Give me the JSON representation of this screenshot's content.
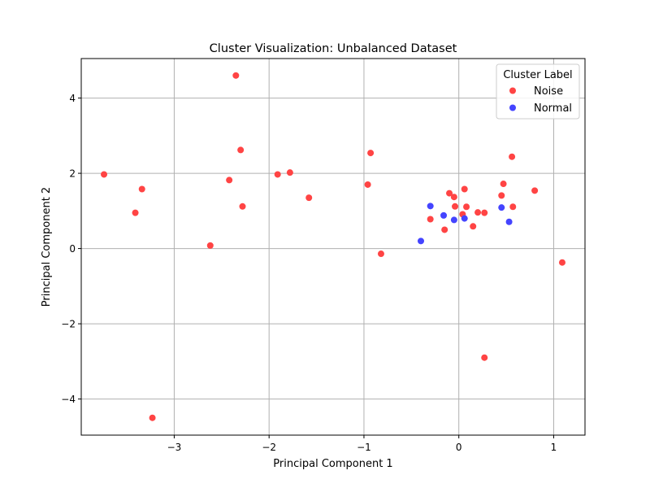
{
  "chart_data": {
    "type": "scatter",
    "title": "Cluster Visualization: Unbalanced Dataset",
    "xlabel": "Principal Component 1",
    "ylabel": "Principal Component 2",
    "xlim": [
      -3.98,
      1.33
    ],
    "ylim": [
      -4.96,
      5.05
    ],
    "xticks": [
      -3,
      -2,
      -1,
      0,
      1
    ],
    "yticks": [
      -4,
      -2,
      0,
      2,
      4
    ],
    "xtick_labels": [
      "−3",
      "−2",
      "−1",
      "0",
      "1"
    ],
    "ytick_labels": [
      "−4",
      "−2",
      "0",
      "2",
      "4"
    ],
    "grid": true,
    "legend": {
      "title": "Cluster Label",
      "placement": "top-right"
    },
    "series": [
      {
        "name": "Noise",
        "color": "#ff4444",
        "points": [
          [
            -2.35,
            4.6
          ],
          [
            -3.74,
            1.97
          ],
          [
            -3.34,
            1.58
          ],
          [
            -3.41,
            0.95
          ],
          [
            -2.3,
            2.62
          ],
          [
            -2.42,
            1.82
          ],
          [
            -2.28,
            1.12
          ],
          [
            -1.91,
            1.97
          ],
          [
            -1.78,
            2.02
          ],
          [
            -1.58,
            1.35
          ],
          [
            -2.62,
            0.08
          ],
          [
            -3.23,
            -4.5
          ],
          [
            -0.93,
            2.54
          ],
          [
            -0.96,
            1.7
          ],
          [
            -0.82,
            -0.14
          ],
          [
            -0.3,
            0.78
          ],
          [
            -0.15,
            0.5
          ],
          [
            -0.1,
            1.47
          ],
          [
            -0.05,
            1.37
          ],
          [
            -0.04,
            1.12
          ],
          [
            0.04,
            0.91
          ],
          [
            0.06,
            1.58
          ],
          [
            0.08,
            1.11
          ],
          [
            0.15,
            0.59
          ],
          [
            0.2,
            0.96
          ],
          [
            0.27,
            0.95
          ],
          [
            0.27,
            -2.9
          ],
          [
            0.45,
            1.41
          ],
          [
            0.47,
            1.72
          ],
          [
            0.56,
            2.44
          ],
          [
            0.57,
            1.11
          ],
          [
            0.8,
            1.54
          ],
          [
            1.09,
            -0.37
          ]
        ]
      },
      {
        "name": "Normal",
        "color": "#4444ff",
        "points": [
          [
            -0.3,
            1.13
          ],
          [
            -0.4,
            0.2
          ],
          [
            -0.16,
            0.88
          ],
          [
            -0.05,
            0.76
          ],
          [
            0.06,
            0.8
          ],
          [
            0.45,
            1.09
          ],
          [
            0.53,
            0.71
          ]
        ]
      }
    ]
  }
}
